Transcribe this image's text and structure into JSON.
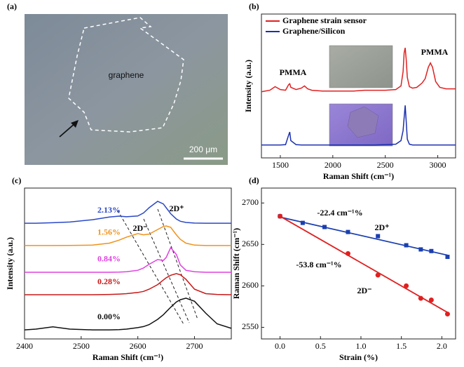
{
  "image_panel": {
    "label": "(a)",
    "text": "graphene",
    "scale_bar": "200 μm"
  },
  "chart_data": [
    {
      "type": "line",
      "label": "(b)",
      "xlabel": "Raman Shift (cm⁻¹)",
      "ylabel": "Intensity (a.u.)",
      "legend": "top-left",
      "xlim": [
        1320,
        3170
      ],
      "ylim": [
        0,
        10
      ],
      "xticks": [
        1500,
        2000,
        2500,
        3000
      ],
      "annotations": [
        "PMMA",
        "PMMA"
      ],
      "x": [
        1320,
        1400,
        1450,
        1500,
        1550,
        1580,
        1590,
        1600,
        1650,
        1700,
        1730,
        1760,
        1800,
        1900,
        2000,
        2100,
        2200,
        2300,
        2400,
        2500,
        2600,
        2650,
        2670,
        2680,
        2690,
        2700,
        2710,
        2730,
        2760,
        2800,
        2850,
        2880,
        2910,
        2930,
        2950,
        2980,
        3020,
        3080,
        3170
      ],
      "series": [
        {
          "name": "Graphene strain sensor",
          "color": "#e02020",
          "values": [
            4.6,
            4.7,
            4.95,
            4.75,
            4.7,
            5.1,
            5.15,
            4.9,
            4.75,
            4.85,
            5.0,
            4.8,
            4.7,
            4.65,
            4.65,
            4.65,
            4.65,
            4.7,
            4.7,
            4.7,
            4.75,
            5.0,
            6.0,
            7.3,
            7.65,
            6.8,
            5.6,
            4.95,
            4.85,
            4.9,
            5.2,
            5.5,
            6.3,
            6.6,
            6.3,
            5.3,
            4.9,
            4.8,
            4.8
          ]
        },
        {
          "name": "Graphene/Silicon",
          "color": "#1a2fb0",
          "values": [
            0.9,
            0.9,
            0.9,
            0.9,
            0.92,
            1.6,
            1.8,
            1.2,
            0.92,
            0.9,
            0.9,
            0.9,
            0.9,
            0.9,
            0.9,
            0.9,
            0.9,
            0.9,
            0.9,
            0.92,
            0.95,
            1.2,
            1.9,
            2.8,
            3.65,
            2.5,
            1.3,
            0.95,
            0.9,
            0.9,
            0.9,
            0.9,
            0.9,
            0.9,
            0.9,
            0.9,
            0.9,
            0.9,
            0.9
          ]
        }
      ]
    },
    {
      "type": "line",
      "label": "(c)",
      "xlabel": "Raman Shift (cm⁻¹)",
      "ylabel": "Intensity (a.u.)",
      "legend": "inline",
      "xlim": [
        2400,
        2765
      ],
      "ylim": [
        0,
        10
      ],
      "xticks": [
        2400,
        2500,
        2600,
        2700
      ],
      "annotations": [
        "2D⁺",
        "2D⁻"
      ],
      "x": [
        2400,
        2420,
        2450,
        2480,
        2520,
        2550,
        2567,
        2580,
        2600,
        2610,
        2620,
        2635,
        2645,
        2650,
        2658,
        2668,
        2675,
        2685,
        2700,
        2720,
        2740,
        2765
      ],
      "series": [
        {
          "name": "2.13%",
          "color": "#2a48c8",
          "values": [
            7.67,
            7.67,
            7.7,
            7.75,
            7.9,
            8.08,
            8.14,
            8.1,
            8.15,
            8.35,
            8.7,
            9.12,
            8.95,
            8.7,
            8.3,
            7.95,
            7.8,
            7.72,
            7.68,
            7.67,
            7.67,
            7.67
          ]
        },
        {
          "name": "1.56%",
          "color": "#f0921a",
          "values": [
            6.19,
            6.19,
            6.19,
            6.2,
            6.22,
            6.35,
            6.55,
            6.75,
            6.98,
            6.9,
            6.95,
            7.25,
            7.45,
            7.49,
            7.4,
            6.9,
            6.6,
            6.35,
            6.22,
            6.19,
            6.19,
            6.19
          ]
        },
        {
          "name": "0.84%",
          "color": "#e040e0",
          "values": [
            4.42,
            4.42,
            4.42,
            4.42,
            4.42,
            4.42,
            4.43,
            4.45,
            4.55,
            4.7,
            4.95,
            5.26,
            5.2,
            5.4,
            6.05,
            5.6,
            4.9,
            4.55,
            4.45,
            4.42,
            4.42,
            4.42
          ]
        },
        {
          "name": "0.28%",
          "color": "#c81818",
          "values": [
            2.93,
            2.93,
            2.93,
            2.93,
            2.93,
            2.95,
            2.97,
            3.0,
            3.08,
            3.15,
            3.3,
            3.6,
            3.9,
            4.05,
            4.22,
            4.33,
            4.25,
            3.95,
            3.3,
            3.0,
            2.95,
            2.93
          ]
        },
        {
          "name": "0.00%",
          "color": "#111111",
          "values": [
            0.6,
            0.65,
            0.8,
            0.65,
            0.6,
            0.6,
            0.62,
            0.65,
            0.75,
            0.82,
            0.95,
            1.3,
            1.6,
            1.8,
            2.1,
            2.45,
            2.6,
            2.7,
            2.5,
            1.7,
            1.0,
            0.7
          ]
        }
      ]
    },
    {
      "type": "scatter",
      "label": "(d)",
      "xlabel": "Strain (%)",
      "ylabel": "Raman Shift (cm⁻¹)",
      "xlim": [
        -0.23,
        2.17
      ],
      "ylim": [
        2536,
        2718
      ],
      "xticks": [
        {
          "value": 0,
          "label": "0.0"
        },
        0.5,
        {
          "value": 1,
          "label": "1.0"
        },
        1.5,
        {
          "value": 2,
          "label": "2.0"
        }
      ],
      "yticks": [
        2550,
        2600,
        2650,
        2700
      ],
      "annotations": [
        "-22.4 cm⁻¹%",
        "-53.8 cm⁻¹%"
      ],
      "series": [
        {
          "name": "2D⁺",
          "color": "#1a3fb0",
          "marker": "square",
          "x": [
            0,
            0.28,
            0.55,
            0.84,
            1.21,
            1.56,
            1.74,
            1.87,
            2.07
          ],
          "values": [
            2684,
            2676,
            2671,
            2665,
            2660,
            2649,
            2644,
            2642,
            2635
          ],
          "fit_x": [
            0,
            2.07
          ],
          "fit": [
            2683,
            2637
          ]
        },
        {
          "name": "2D⁻",
          "color": "#e02020",
          "marker": "circle",
          "x": [
            0,
            0.84,
            1.21,
            1.56,
            1.74,
            1.87,
            2.07
          ],
          "values": [
            2684,
            2639,
            2613,
            2600,
            2585,
            2583,
            2566
          ],
          "fit_x": [
            0,
            2.07
          ],
          "fit": [
            2684,
            2568
          ]
        }
      ]
    }
  ]
}
